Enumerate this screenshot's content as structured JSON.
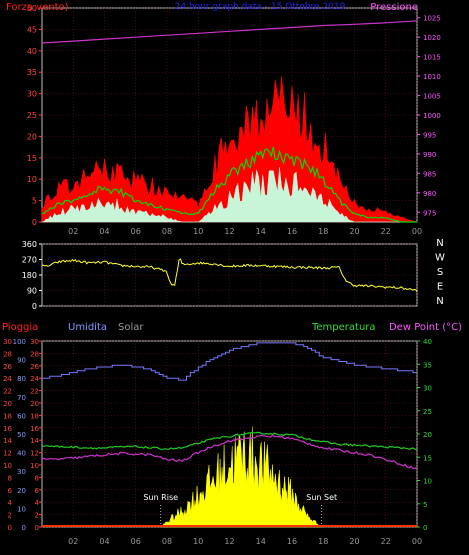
{
  "colors": {
    "background": "#000000",
    "frame": "#c0c0c0",
    "grid": "#7a1a1a",
    "wind_max": "#ff0000",
    "wind_avg": "#00dd00",
    "wind_min": "#c8f5d8",
    "pressure": "#cc33cc",
    "direction": "#ffff33",
    "humidity": "#7777ff",
    "temperature": "#22cc22",
    "dew_point": "#cc33cc",
    "solar": "#ffff00",
    "rain": "#ff3300",
    "title": "#2222ee",
    "label_red": "#ff2222",
    "tick_red": "#ff4444",
    "tick_magenta": "#ff55ff",
    "tick_blue": "#8899ff",
    "tick_green": "#33dd33",
    "tick_white": "#ffffff",
    "solar_label": "#999999",
    "tick_gray": "#999999"
  },
  "chart_data": [
    {
      "type": "line",
      "title": "24 hour graph data - 15 Ottobre 2019",
      "left_label": "Forza vento)",
      "right_label": "Pressione",
      "x_ticks": [
        "02",
        "04",
        "06",
        "08",
        "10",
        "12",
        "14",
        "16",
        "18",
        "20",
        "22",
        "00"
      ],
      "y_left": {
        "ticks": [
          0,
          5,
          10,
          15,
          20,
          25,
          30,
          35,
          40,
          45,
          50
        ],
        "range": [
          0,
          50
        ]
      },
      "y_right": {
        "ticks": [
          975,
          980,
          985,
          990,
          995,
          1000,
          1005,
          1010,
          1015,
          1020,
          1025
        ],
        "range": [
          972.5,
          1027.5
        ]
      },
      "series": [
        {
          "key": "wind_max",
          "x": [
            0,
            1,
            2,
            3,
            4,
            5,
            6,
            7,
            8,
            9,
            10,
            11,
            12,
            13,
            14,
            15,
            16,
            17,
            18,
            19,
            20,
            21,
            22,
            23,
            24
          ],
          "values": [
            4,
            7,
            8,
            10,
            12,
            11,
            9,
            8,
            6,
            5,
            4,
            12,
            18,
            22,
            24,
            26,
            24,
            22,
            17,
            9,
            4,
            3,
            2,
            1,
            0
          ]
        },
        {
          "key": "wind_avg",
          "x": [
            0,
            1,
            2,
            3,
            4,
            5,
            6,
            7,
            8,
            9,
            10,
            11,
            12,
            13,
            14,
            15,
            16,
            17,
            18,
            19,
            20,
            21,
            22,
            23,
            24
          ],
          "values": [
            2,
            4,
            5,
            7,
            8,
            7,
            5,
            4,
            3,
            2,
            2,
            7,
            11,
            14,
            15,
            16,
            15,
            13,
            10,
            5,
            2,
            1,
            1,
            0,
            0
          ]
        },
        {
          "key": "wind_min",
          "x": [
            0,
            1,
            2,
            3,
            4,
            5,
            6,
            7,
            8,
            9,
            10,
            11,
            12,
            13,
            14,
            15,
            16,
            17,
            18,
            19,
            20,
            21,
            22,
            23,
            24
          ],
          "values": [
            0,
            2,
            3,
            4,
            4,
            4,
            2,
            2,
            1,
            0,
            0,
            3,
            6,
            8,
            9,
            10,
            9,
            8,
            5,
            2,
            0,
            0,
            0,
            0,
            0
          ]
        },
        {
          "key": "pressure",
          "axis": "right",
          "x": [
            0,
            2,
            4,
            6,
            8,
            10,
            12,
            14,
            16,
            18,
            20,
            22,
            24
          ],
          "values": [
            1018.5,
            1019,
            1019.5,
            1020,
            1020.5,
            1021,
            1021.5,
            1022,
            1022.5,
            1023,
            1023.3,
            1023.7,
            1024.2
          ]
        }
      ]
    },
    {
      "type": "line",
      "right_labels": [
        "N",
        "W",
        "S",
        "E",
        "N"
      ],
      "y_left": {
        "ticks": [
          0,
          90,
          180,
          270,
          360
        ],
        "range": [
          0,
          360
        ]
      },
      "series": [
        {
          "key": "wind_direction",
          "x": [
            0,
            0.5,
            1,
            2,
            3,
            4,
            5,
            6,
            7,
            8,
            8.2,
            8.5,
            8.8,
            9,
            10,
            11,
            12,
            13,
            14,
            15,
            16,
            17,
            18,
            19,
            19.5,
            20,
            21,
            22,
            23,
            24
          ],
          "values": [
            230,
            235,
            255,
            265,
            250,
            255,
            235,
            230,
            225,
            200,
            130,
            120,
            280,
            240,
            250,
            245,
            230,
            235,
            235,
            230,
            225,
            225,
            220,
            225,
            140,
            120,
            115,
            110,
            105,
            90
          ]
        }
      ]
    },
    {
      "type": "line",
      "labels": {
        "rain": "Pioggia",
        "humidity": "Umidita",
        "solar": "Solar",
        "temperature": "Temperatura",
        "dew_point": "Dew Point (°C)"
      },
      "annotations": [
        "Sun Rise",
        "Sun Set"
      ],
      "sunrise_hour": 7.6,
      "sunset_hour": 17.9,
      "x_ticks": [
        "02",
        "04",
        "06",
        "08",
        "10",
        "12",
        "14",
        "16",
        "18",
        "20",
        "22",
        "00"
      ],
      "y_axes": [
        {
          "key": "rain",
          "ticks": [
            0,
            2,
            4,
            6,
            8,
            10,
            12,
            14,
            16,
            18,
            20,
            22,
            24,
            26,
            28,
            30
          ],
          "range": [
            0,
            30
          ]
        },
        {
          "key": "humidity",
          "ticks": [
            0,
            10,
            20,
            30,
            40,
            50,
            60,
            70,
            80,
            90,
            100
          ],
          "range": [
            0,
            100
          ]
        },
        {
          "key": "temp_left",
          "ticks": [
            0,
            2,
            4,
            6,
            8,
            10,
            12,
            14,
            16,
            18,
            20,
            22,
            24,
            26,
            28,
            30
          ],
          "range": [
            0,
            30
          ]
        },
        {
          "key": "temperature",
          "axis": "right",
          "ticks": [
            0,
            5,
            10,
            15,
            20,
            25,
            30,
            35,
            40
          ],
          "range": [
            0,
            40
          ]
        }
      ],
      "series": [
        {
          "key": "humidity",
          "x": [
            0,
            1,
            2,
            3,
            4,
            5,
            6,
            7,
            8,
            9,
            10,
            11,
            12,
            13,
            14,
            15,
            16,
            17,
            18,
            19,
            20,
            21,
            22,
            23,
            24
          ],
          "values": [
            80,
            81,
            83,
            85,
            86,
            87,
            86,
            84,
            80,
            79,
            86,
            91,
            95,
            97,
            99,
            99,
            99,
            96,
            91,
            89,
            87,
            86,
            85,
            84,
            83
          ]
        },
        {
          "key": "temperature",
          "x": [
            0,
            1,
            2,
            3,
            4,
            5,
            6,
            7,
            8,
            9,
            10,
            11,
            12,
            13,
            14,
            15,
            16,
            17,
            18,
            19,
            20,
            21,
            22,
            23,
            24
          ],
          "values": [
            17.5,
            17.3,
            17.2,
            17,
            17,
            17.2,
            17.3,
            17,
            16.8,
            17,
            18,
            19,
            19.5,
            20,
            20.2,
            20,
            19.8,
            19,
            18.3,
            17.8,
            17.6,
            17.4,
            17.2,
            17,
            16.8
          ]
        },
        {
          "key": "dew_point",
          "x": [
            0,
            1,
            2,
            3,
            4,
            5,
            6,
            7,
            8,
            9,
            10,
            11,
            12,
            13,
            14,
            15,
            16,
            17,
            18,
            19,
            20,
            21,
            22,
            23,
            24
          ],
          "values": [
            14.5,
            14.6,
            14.8,
            15.2,
            15.5,
            15.8,
            15.7,
            15.5,
            14.5,
            14.2,
            16,
            17.5,
            18.5,
            19,
            19.5,
            19.5,
            19,
            18,
            17,
            16.5,
            16,
            15.5,
            14.5,
            13.5,
            12.5
          ]
        },
        {
          "key": "solar",
          "x": [
            7.6,
            8,
            9,
            10,
            11,
            12,
            13,
            14,
            15,
            16,
            17,
            17.9
          ],
          "values": [
            0,
            1,
            3,
            6,
            9,
            12,
            14,
            12,
            9,
            6,
            2,
            0
          ]
        },
        {
          "key": "rain",
          "x": [
            0,
            24
          ],
          "values": [
            0,
            0
          ]
        }
      ]
    }
  ]
}
